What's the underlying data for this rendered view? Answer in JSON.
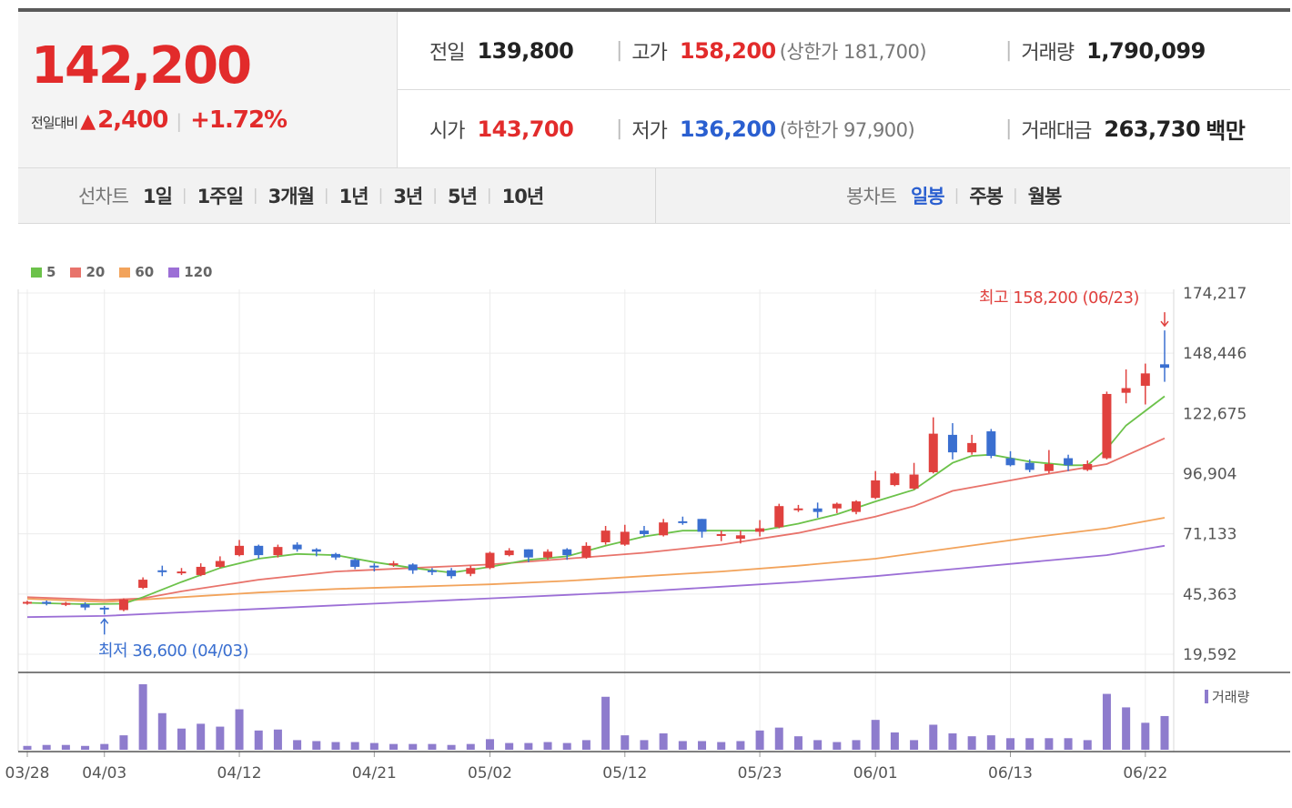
{
  "summary": {
    "current_price": "142,200",
    "change_label": "전일대비",
    "change_arrow": "▲",
    "change_amount": "2,400",
    "change_percent": "+1.72%"
  },
  "stats": {
    "prev_close_label": "전일",
    "prev_close": "139,800",
    "high_label": "고가",
    "high": "158,200",
    "upper_limit": "(상한가 181,700)",
    "volume_label": "거래량",
    "volume": "1,790,099",
    "open_label": "시가",
    "open": "143,700",
    "low_label": "저가",
    "low": "136,200",
    "lower_limit": "(하한가 97,900)",
    "amount_label": "거래대금",
    "amount": "263,730",
    "amount_unit": "백만"
  },
  "line_chart_tabs": {
    "title": "선차트",
    "items": [
      "1일",
      "1주일",
      "3개월",
      "1년",
      "3년",
      "5년",
      "10년"
    ]
  },
  "candle_chart_tabs": {
    "title": "봉차트",
    "items": [
      "일봉",
      "주봉",
      "월봉"
    ],
    "active": "일봉"
  },
  "colors": {
    "up": "#e0413e",
    "down": "#3a6fd0",
    "ma5": "#6cc24a",
    "ma20": "#e8736b",
    "ma60": "#f2a35b",
    "ma120": "#9c6fd6",
    "volume": "#8e7ccd"
  },
  "chart_data": {
    "type": "candlestick",
    "legend": [
      {
        "name": "5",
        "color": "#6cc24a"
      },
      {
        "name": "20",
        "color": "#e8736b"
      },
      {
        "name": "60",
        "color": "#f2a35b"
      },
      {
        "name": "120",
        "color": "#9c6fd6"
      }
    ],
    "y_ticks": [
      "174,217",
      "148,446",
      "122,675",
      "96,904",
      "71,133",
      "45,363",
      "19,592"
    ],
    "ylim": [
      19592,
      174217
    ],
    "x_ticks": [
      {
        "label": "03/28",
        "index": 0
      },
      {
        "label": "04/03",
        "index": 4
      },
      {
        "label": "04/12",
        "index": 11
      },
      {
        "label": "04/21",
        "index": 18
      },
      {
        "label": "05/02",
        "index": 24
      },
      {
        "label": "05/12",
        "index": 31
      },
      {
        "label": "05/23",
        "index": 38
      },
      {
        "label": "06/01",
        "index": 44
      },
      {
        "label": "06/13",
        "index": 51
      },
      {
        "label": "06/22",
        "index": 58
      }
    ],
    "candles": [
      [
        41500,
        42500,
        40800,
        42000
      ],
      [
        42000,
        42600,
        40500,
        41200
      ],
      [
        41200,
        42000,
        40200,
        41500
      ],
      [
        41000,
        41800,
        38500,
        39600
      ],
      [
        39500,
        40200,
        36600,
        39000
      ],
      [
        38500,
        43500,
        38000,
        43000
      ],
      [
        48000,
        52500,
        47500,
        51500
      ],
      [
        55500,
        57500,
        53000,
        55000
      ],
      [
        55000,
        56500,
        53500,
        55000
      ],
      [
        53500,
        58500,
        53000,
        57000
      ],
      [
        57000,
        61500,
        56500,
        59500
      ],
      [
        62000,
        68500,
        61500,
        66000
      ],
      [
        66000,
        66500,
        60500,
        62000
      ],
      [
        62000,
        66500,
        61000,
        65500
      ],
      [
        66500,
        67500,
        63500,
        64500
      ],
      [
        64500,
        65000,
        61500,
        63500
      ],
      [
        62500,
        63000,
        60000,
        61000
      ],
      [
        60000,
        60500,
        56000,
        57000
      ],
      [
        57500,
        58500,
        55000,
        57000
      ],
      [
        58500,
        59500,
        57000,
        58500
      ],
      [
        58000,
        58500,
        54000,
        55500
      ],
      [
        55500,
        56500,
        53500,
        55000
      ],
      [
        55500,
        56500,
        52000,
        53000
      ],
      [
        54000,
        57500,
        53000,
        56500
      ],
      [
        56500,
        63500,
        56000,
        63000
      ],
      [
        62000,
        65000,
        61500,
        64000
      ],
      [
        64500,
        64500,
        59000,
        61000
      ],
      [
        61000,
        64500,
        60000,
        63500
      ],
      [
        64500,
        65000,
        60000,
        62000
      ],
      [
        61000,
        67500,
        60500,
        66000
      ],
      [
        67500,
        74500,
        66500,
        72500
      ],
      [
        66500,
        75000,
        66000,
        72000
      ],
      [
        72500,
        74500,
        70000,
        71000
      ],
      [
        70500,
        77500,
        70000,
        76000
      ],
      [
        76500,
        78500,
        75000,
        76000
      ],
      [
        77500,
        77500,
        69500,
        72000
      ],
      [
        70500,
        72500,
        68000,
        71000
      ],
      [
        69000,
        72500,
        67000,
        70500
      ],
      [
        72000,
        77000,
        70000,
        73500
      ],
      [
        74000,
        84000,
        73500,
        83000
      ],
      [
        81500,
        83500,
        80500,
        82000
      ],
      [
        82000,
        84500,
        78000,
        80500
      ],
      [
        82000,
        84500,
        80000,
        84000
      ],
      [
        80500,
        85500,
        79500,
        85000
      ],
      [
        86500,
        98000,
        86000,
        94000
      ],
      [
        92000,
        97500,
        91500,
        97000
      ],
      [
        90500,
        101500,
        90000,
        96500
      ],
      [
        97500,
        121000,
        97000,
        114000
      ],
      [
        113500,
        118500,
        103000,
        106000
      ],
      [
        106000,
        113500,
        105000,
        110000
      ],
      [
        115000,
        116000,
        103500,
        104500
      ],
      [
        103500,
        106500,
        100000,
        100500
      ],
      [
        101500,
        103000,
        97500,
        98500
      ],
      [
        98000,
        107000,
        97000,
        101000
      ],
      [
        103500,
        105000,
        98000,
        100500
      ],
      [
        98500,
        102500,
        98000,
        101000
      ],
      [
        103500,
        132000,
        103000,
        131000
      ],
      [
        131500,
        141500,
        127000,
        133500
      ],
      [
        134500,
        144000,
        126500,
        139800
      ],
      [
        143700,
        158200,
        136200,
        142200
      ]
    ],
    "ma": {
      "ma5": [
        [
          0,
          41600
        ],
        [
          3,
          41000
        ],
        [
          5,
          41200
        ],
        [
          6,
          44000
        ],
        [
          8,
          50500
        ],
        [
          10,
          56500
        ],
        [
          12,
          60500
        ],
        [
          14,
          62500
        ],
        [
          16,
          62000
        ],
        [
          18,
          59000
        ],
        [
          20,
          56500
        ],
        [
          22,
          54500
        ],
        [
          24,
          57000
        ],
        [
          26,
          60000
        ],
        [
          28,
          61500
        ],
        [
          30,
          66000
        ],
        [
          32,
          70000
        ],
        [
          34,
          72500
        ],
        [
          36,
          72500
        ],
        [
          38,
          72500
        ],
        [
          40,
          75500
        ],
        [
          42,
          79500
        ],
        [
          44,
          85000
        ],
        [
          46,
          90000
        ],
        [
          48,
          101500
        ],
        [
          49,
          104500
        ],
        [
          50,
          105000
        ],
        [
          52,
          102000
        ],
        [
          54,
          100500
        ],
        [
          55,
          100500
        ],
        [
          56,
          107500
        ],
        [
          57,
          117500
        ],
        [
          59,
          130000
        ]
      ],
      "ma20": [
        [
          0,
          44000
        ],
        [
          4,
          42800
        ],
        [
          6,
          43500
        ],
        [
          8,
          46500
        ],
        [
          12,
          51500
        ],
        [
          16,
          55000
        ],
        [
          20,
          56500
        ],
        [
          24,
          58000
        ],
        [
          28,
          60500
        ],
        [
          32,
          63000
        ],
        [
          36,
          66500
        ],
        [
          40,
          71500
        ],
        [
          44,
          78500
        ],
        [
          46,
          83000
        ],
        [
          48,
          89500
        ],
        [
          52,
          95500
        ],
        [
          56,
          101000
        ],
        [
          59,
          112000
        ]
      ],
      "ma60": [
        [
          0,
          43300
        ],
        [
          4,
          42000
        ],
        [
          8,
          44000
        ],
        [
          12,
          46000
        ],
        [
          16,
          47500
        ],
        [
          20,
          48500
        ],
        [
          24,
          49500
        ],
        [
          28,
          51000
        ],
        [
          32,
          53000
        ],
        [
          36,
          55000
        ],
        [
          40,
          57500
        ],
        [
          44,
          60500
        ],
        [
          48,
          65000
        ],
        [
          52,
          69500
        ],
        [
          56,
          73500
        ],
        [
          59,
          78000
        ]
      ],
      "ma120": [
        [
          0,
          35500
        ],
        [
          4,
          36000
        ],
        [
          8,
          37500
        ],
        [
          12,
          39000
        ],
        [
          16,
          40500
        ],
        [
          20,
          42000
        ],
        [
          24,
          43500
        ],
        [
          28,
          45000
        ],
        [
          32,
          46500
        ],
        [
          36,
          48500
        ],
        [
          40,
          50500
        ],
        [
          44,
          53000
        ],
        [
          48,
          56000
        ],
        [
          52,
          59000
        ],
        [
          56,
          62000
        ],
        [
          59,
          66000
        ]
      ]
    },
    "volumes": [
      4,
      5,
      5,
      4,
      6,
      15,
      68,
      38,
      22,
      27,
      24,
      42,
      20,
      21,
      10,
      9,
      8,
      8,
      7,
      6,
      6,
      6,
      5,
      6,
      11,
      7,
      7,
      8,
      7,
      10,
      55,
      15,
      10,
      17,
      9,
      9,
      8,
      9,
      20,
      23,
      14,
      10,
      8,
      10,
      31,
      18,
      10,
      26,
      17,
      14,
      15,
      12,
      12,
      12,
      12,
      10,
      58,
      44,
      28,
      35
    ],
    "annotation_high": "최고 158,200 (06/23)",
    "annotation_low": "최저 36,600 (04/03)",
    "volume_legend": "거래량"
  }
}
